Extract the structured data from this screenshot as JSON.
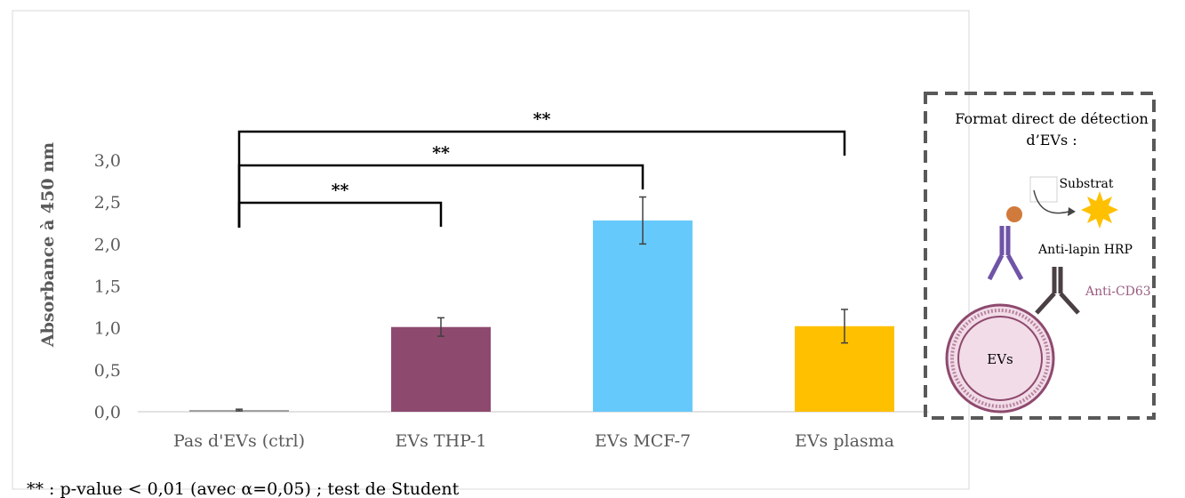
{
  "chart_data": {
    "type": "bar",
    "categories": [
      "Pas d'EVs (ctrl)",
      "EVs THP-1",
      "EVs MCF-7",
      "EVs plasma"
    ],
    "values": [
      0.02,
      1.01,
      2.28,
      1.02
    ],
    "errors": [
      0.01,
      0.11,
      0.28,
      0.2
    ],
    "colors": [
      "#9a9a9a",
      "#8e4a6e",
      "#66c9fb",
      "#ffc000"
    ],
    "ylabel": "Absorbance à 450 nm",
    "ylim": [
      0,
      3
    ],
    "yticks": [
      "0,0",
      "0,5",
      "1,0",
      "1,5",
      "2,0",
      "2,5",
      "3,0"
    ],
    "grid": false,
    "significance": [
      {
        "from": 0,
        "to": 1,
        "label": "**"
      },
      {
        "from": 0,
        "to": 2,
        "label": "**"
      },
      {
        "from": 0,
        "to": 3,
        "label": "**"
      }
    ],
    "footnote": "** : p-value < 0,01 (avec α=0,05) ; test de Student"
  },
  "schematic": {
    "title_line1": "Format direct de détection",
    "title_line2": "d’EVs :",
    "substrate_label": "Substrat",
    "hrp_label": "Anti-lapin HRP",
    "cd63_label": "Anti-CD63",
    "ev_label": "EVs",
    "colors": {
      "secondary": "#6f54a7",
      "primary": "#4a3f43",
      "hrp": "#d07a3c",
      "sun": "#ffc000",
      "membrane": "#8e4a6e",
      "cd63_text": "#9a5b80"
    }
  }
}
